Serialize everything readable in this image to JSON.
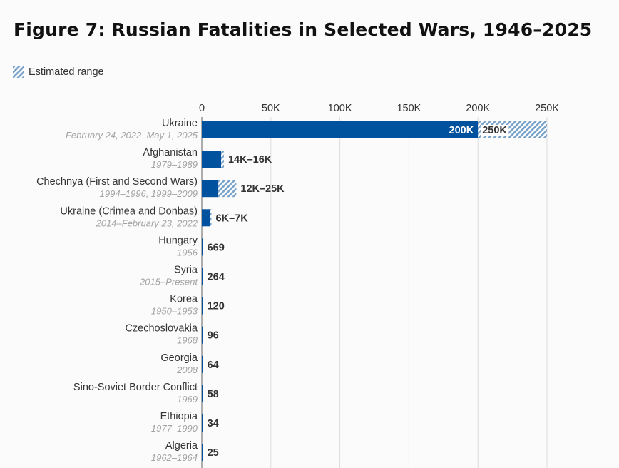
{
  "page": {
    "title": "Figure 7: Russian Fatalities in Selected Wars, 1946–2025",
    "legend_label": "Estimated range"
  },
  "colors": {
    "bar": "#00519e",
    "hatch": "#7aa3c9",
    "grid": "#dcdcdc",
    "axis": "#7a7a7a"
  },
  "chart_data": {
    "type": "bar",
    "orientation": "horizontal",
    "title": "Figure 7: Russian Fatalities in Selected Wars, 1946–2025",
    "xlim": [
      0,
      250000
    ],
    "ticks": [
      {
        "value": 0,
        "label": "0"
      },
      {
        "value": 50000,
        "label": "50K"
      },
      {
        "value": 100000,
        "label": "100K"
      },
      {
        "value": 150000,
        "label": "150K"
      },
      {
        "value": 200000,
        "label": "200K"
      },
      {
        "value": 250000,
        "label": "250K"
      }
    ],
    "legend": [
      "Estimated range"
    ],
    "grid": true,
    "rows": [
      {
        "name": "Ukraine",
        "dates": "February 24, 2022–May 1, 2025",
        "low": 200000,
        "high": 250000,
        "label": "200K",
        "label_high": "250K"
      },
      {
        "name": "Afghanistan",
        "dates": "1979–1989",
        "low": 14000,
        "high": 16000,
        "label": "14K–16K"
      },
      {
        "name": "Chechnya (First and Second Wars)",
        "dates": "1994–1996, 1999–2009",
        "low": 12000,
        "high": 25000,
        "label": "12K–25K"
      },
      {
        "name": "Ukraine (Crimea and Donbas)",
        "dates": "2014–February 23, 2022",
        "low": 6000,
        "high": 7000,
        "label": "6K–7K"
      },
      {
        "name": "Hungary",
        "dates": "1956",
        "low": 669,
        "high": 669,
        "label": "669"
      },
      {
        "name": "Syria",
        "dates": "2015–Present",
        "low": 264,
        "high": 264,
        "label": "264"
      },
      {
        "name": "Korea",
        "dates": "1950–1953",
        "low": 120,
        "high": 120,
        "label": "120"
      },
      {
        "name": "Czechoslovakia",
        "dates": "1968",
        "low": 96,
        "high": 96,
        "label": "96"
      },
      {
        "name": "Georgia",
        "dates": "2008",
        "low": 64,
        "high": 64,
        "label": "64"
      },
      {
        "name": "Sino-Soviet Border Conflict",
        "dates": "1969",
        "low": 58,
        "high": 58,
        "label": "58"
      },
      {
        "name": "Ethiopia",
        "dates": "1977–1990",
        "low": 34,
        "high": 34,
        "label": "34"
      },
      {
        "name": "Algeria",
        "dates": "1962–1964",
        "low": 25,
        "high": 25,
        "label": "25"
      }
    ]
  }
}
